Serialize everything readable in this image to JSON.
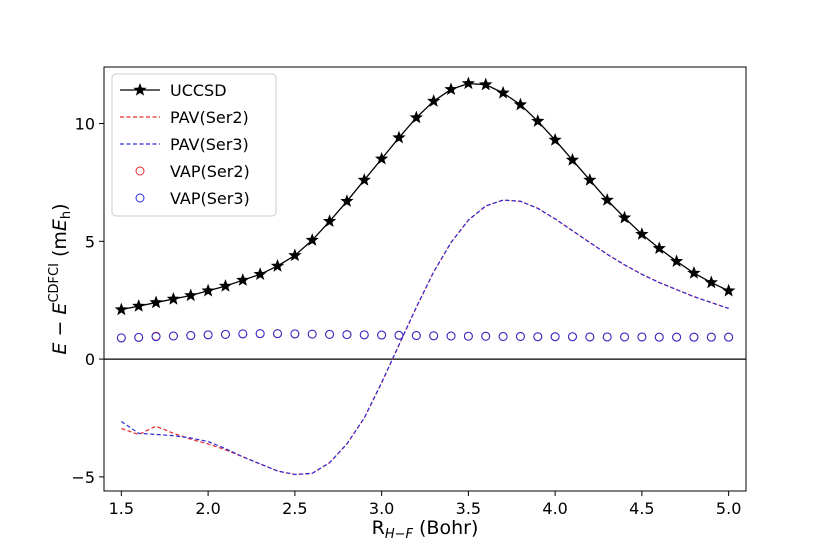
{
  "chart_data": {
    "type": "line",
    "xlabel": "R",
    "xlabel_sub": "H−F",
    "xlabel_unit": " (Bohr)",
    "ylabel_E": "E",
    "ylabel_op": " − ",
    "ylabel_E2": "E",
    "ylabel_sup": "CDFCI",
    "ylabel_unit_pre": " (m",
    "ylabel_unit_E": "E",
    "ylabel_unit_sub": "h",
    "ylabel_unit_post": ")",
    "xlim": [
      1.4,
      5.1
    ],
    "ylim": [
      -5.6,
      12.4
    ],
    "xticks": [
      1.5,
      2.0,
      2.5,
      3.0,
      3.5,
      4.0,
      4.5,
      5.0
    ],
    "xtick_labels": [
      "1.5",
      "2.0",
      "2.5",
      "3.0",
      "3.5",
      "4.0",
      "4.5",
      "5.0"
    ],
    "yticks": [
      -5,
      0,
      5,
      10
    ],
    "ytick_labels": [
      "−5",
      "0",
      "5",
      "10"
    ],
    "zero_line": true,
    "grid": false,
    "legend_position": "top-left",
    "series": [
      {
        "name": "UCCSD",
        "style": "line-star",
        "color": "#000000",
        "x": [
          1.5,
          1.6,
          1.7,
          1.8,
          1.9,
          2.0,
          2.1,
          2.2,
          2.3,
          2.4,
          2.5,
          2.6,
          2.7,
          2.8,
          2.9,
          3.0,
          3.1,
          3.2,
          3.3,
          3.4,
          3.5,
          3.6,
          3.7,
          3.8,
          3.9,
          4.0,
          4.1,
          4.2,
          4.3,
          4.4,
          4.5,
          4.6,
          4.7,
          4.8,
          4.9,
          5.0
        ],
        "y": [
          2.1,
          2.25,
          2.4,
          2.55,
          2.7,
          2.9,
          3.1,
          3.35,
          3.6,
          3.95,
          4.4,
          5.05,
          5.85,
          6.7,
          7.6,
          8.5,
          9.4,
          10.25,
          10.95,
          11.45,
          11.7,
          11.65,
          11.3,
          10.8,
          10.1,
          9.3,
          8.45,
          7.6,
          6.75,
          6.0,
          5.3,
          4.7,
          4.15,
          3.65,
          3.25,
          2.9
        ]
      },
      {
        "name": "PAV(Ser2)",
        "style": "dashed",
        "color": "#e8292a",
        "x": [
          1.5,
          1.6,
          1.7,
          1.8,
          1.9,
          2.0,
          2.1,
          2.2,
          2.3,
          2.4,
          2.5,
          2.6,
          2.7,
          2.8,
          2.9,
          3.0,
          3.1,
          3.2,
          3.3,
          3.4,
          3.5,
          3.6,
          3.7,
          3.8,
          3.9,
          4.0,
          4.1,
          4.2,
          4.3,
          4.4,
          4.5,
          4.6,
          4.7,
          4.8,
          4.9,
          5.0
        ],
        "y": [
          -2.95,
          -3.2,
          -2.85,
          -3.15,
          -3.4,
          -3.6,
          -3.85,
          -4.15,
          -4.45,
          -4.75,
          -4.9,
          -4.85,
          -4.4,
          -3.6,
          -2.5,
          -1.0,
          0.6,
          2.2,
          3.7,
          4.95,
          5.9,
          6.5,
          6.75,
          6.7,
          6.4,
          5.95,
          5.45,
          4.95,
          4.45,
          4.0,
          3.6,
          3.25,
          2.95,
          2.65,
          2.4,
          2.15
        ]
      },
      {
        "name": "PAV(Ser3)",
        "style": "dashed",
        "color": "#2b2bd9",
        "x": [
          1.5,
          1.6,
          1.7,
          1.8,
          1.9,
          2.0,
          2.1,
          2.2,
          2.3,
          2.4,
          2.5,
          2.6,
          2.7,
          2.8,
          2.9,
          3.0,
          3.1,
          3.2,
          3.3,
          3.4,
          3.5,
          3.6,
          3.7,
          3.8,
          3.9,
          4.0,
          4.1,
          4.2,
          4.3,
          4.4,
          4.5,
          4.6,
          4.7,
          4.8,
          4.9,
          5.0
        ],
        "y": [
          -2.65,
          -3.15,
          -3.2,
          -3.25,
          -3.35,
          -3.5,
          -3.8,
          -4.15,
          -4.45,
          -4.75,
          -4.9,
          -4.85,
          -4.4,
          -3.6,
          -2.5,
          -1.0,
          0.6,
          2.2,
          3.7,
          4.95,
          5.9,
          6.5,
          6.75,
          6.7,
          6.4,
          5.95,
          5.45,
          4.95,
          4.45,
          4.0,
          3.6,
          3.25,
          2.95,
          2.65,
          2.4,
          2.15
        ]
      },
      {
        "name": "VAP(Ser2)",
        "style": "circle",
        "color": "#e8292a",
        "x": [
          1.5,
          1.6,
          1.7,
          1.8,
          1.9,
          2.0,
          2.1,
          2.2,
          2.3,
          2.4,
          2.5,
          2.6,
          2.7,
          2.8,
          2.9,
          3.0,
          3.1,
          3.2,
          3.3,
          3.4,
          3.5,
          3.6,
          3.7,
          3.8,
          3.9,
          4.0,
          4.1,
          4.2,
          4.3,
          4.4,
          4.5,
          4.6,
          4.7,
          4.8,
          4.9,
          5.0
        ],
        "y": [
          0.9,
          0.92,
          0.97,
          0.98,
          1.0,
          1.03,
          1.05,
          1.07,
          1.08,
          1.08,
          1.07,
          1.06,
          1.05,
          1.04,
          1.03,
          1.02,
          1.01,
          1.0,
          0.99,
          0.98,
          0.97,
          0.97,
          0.96,
          0.96,
          0.95,
          0.95,
          0.95,
          0.94,
          0.94,
          0.94,
          0.94,
          0.93,
          0.93,
          0.93,
          0.93,
          0.93
        ]
      },
      {
        "name": "VAP(Ser3)",
        "style": "circle",
        "color": "#2b2bd9",
        "x": [
          1.5,
          1.6,
          1.7,
          1.8,
          1.9,
          2.0,
          2.1,
          2.2,
          2.3,
          2.4,
          2.5,
          2.6,
          2.7,
          2.8,
          2.9,
          3.0,
          3.1,
          3.2,
          3.3,
          3.4,
          3.5,
          3.6,
          3.7,
          3.8,
          3.9,
          4.0,
          4.1,
          4.2,
          4.3,
          4.4,
          4.5,
          4.6,
          4.7,
          4.8,
          4.9,
          5.0
        ],
        "y": [
          0.9,
          0.92,
          0.95,
          0.98,
          1.0,
          1.03,
          1.05,
          1.07,
          1.08,
          1.08,
          1.07,
          1.06,
          1.05,
          1.04,
          1.03,
          1.02,
          1.01,
          1.0,
          0.99,
          0.98,
          0.97,
          0.97,
          0.96,
          0.96,
          0.95,
          0.95,
          0.95,
          0.94,
          0.94,
          0.94,
          0.94,
          0.93,
          0.93,
          0.93,
          0.93,
          0.93
        ]
      }
    ]
  }
}
